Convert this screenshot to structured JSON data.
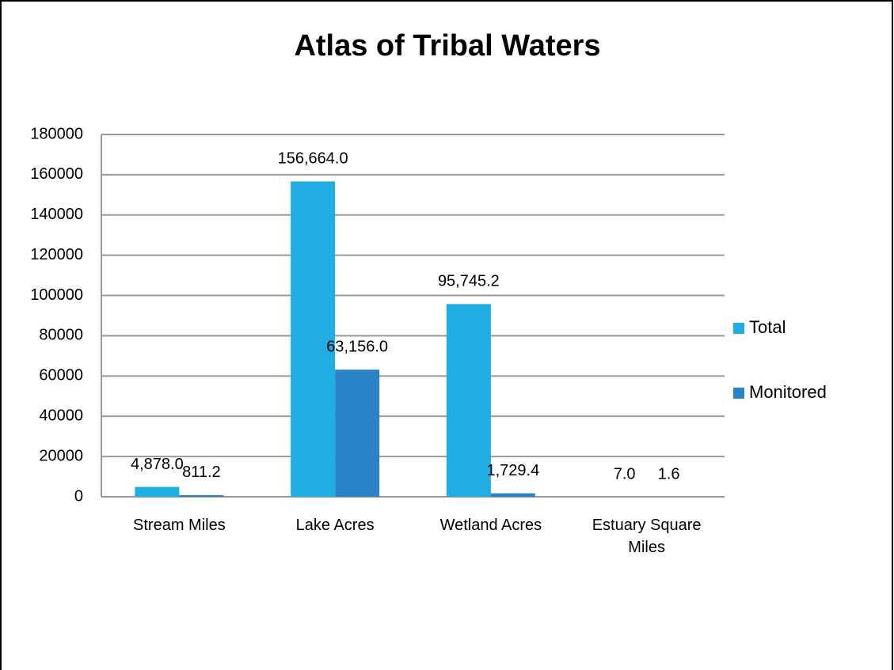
{
  "chart_data": {
    "type": "bar",
    "title": "Atlas of Tribal Waters",
    "categories": [
      "Stream Miles",
      "Lake Acres",
      "Wetland Acres",
      "Estuary Square Miles"
    ],
    "series": [
      {
        "name": "Total",
        "color": "#1fade2",
        "values": [
          4878.0,
          156664.0,
          95745.2,
          7.0
        ],
        "value_labels": [
          "4,878.0",
          "156,664.0",
          "95,745.2",
          "7.0"
        ]
      },
      {
        "name": "Monitored",
        "color": "#2a83c6",
        "values": [
          811.2,
          63156.0,
          1729.4,
          1.6
        ],
        "value_labels": [
          "811.2",
          "63,156.0",
          "1,729.4",
          "1.6"
        ]
      }
    ],
    "ylim": [
      0,
      180000
    ],
    "yticks": [
      0,
      20000,
      40000,
      60000,
      80000,
      100000,
      120000,
      140000,
      160000,
      180000
    ],
    "grid": true,
    "legend": "right"
  }
}
